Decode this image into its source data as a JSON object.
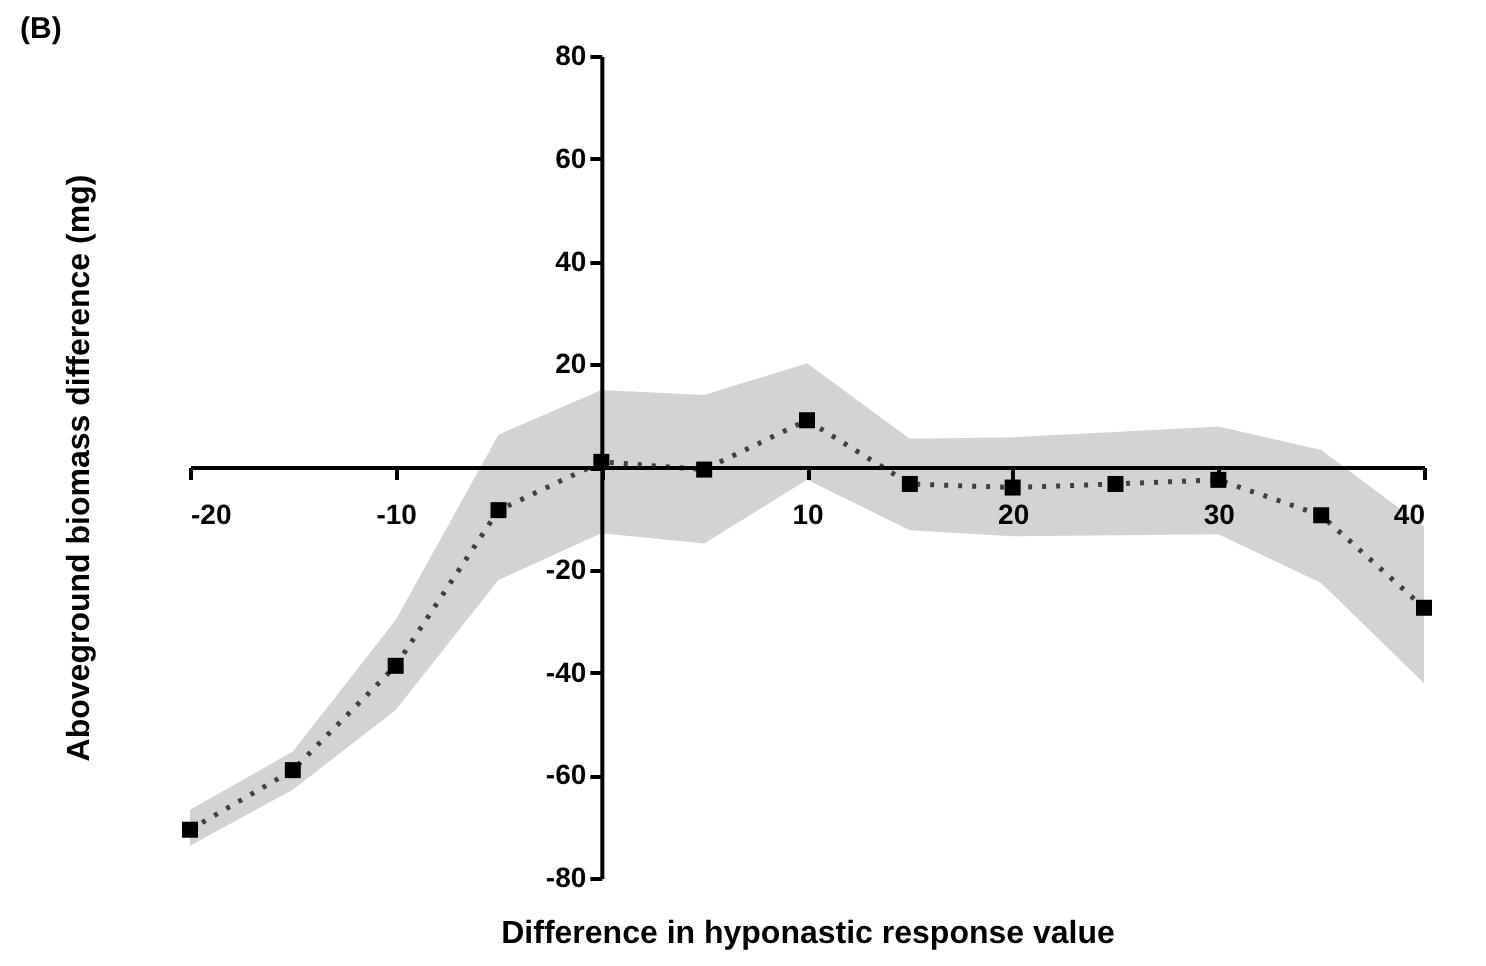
{
  "chart_data": {
    "type": "line",
    "title": "(B)",
    "xlabel": "Difference in hyponastic response value",
    "ylabel": "Aboveground biomass difference (mg)",
    "x": [
      -20,
      -15,
      -10,
      -5,
      0,
      5,
      10,
      15,
      20,
      25,
      30,
      35,
      40
    ],
    "series": [
      {
        "color": "#000000",
        "values": [
          -70.6,
          -59,
          -38.7,
          -8.4,
          1,
          -0.5,
          9.1,
          -3.3,
          -4,
          -3.3,
          -2.5,
          -9.4,
          -27.4
        ],
        "lower": [
          -73.7,
          -62.8,
          -47.3,
          -22,
          -12.9,
          -14.9,
          -2.5,
          -12.3,
          -13.5,
          -13.3,
          -13.1,
          -22.6,
          -42.1
        ],
        "upper": [
          -66.7,
          -55.4,
          -29.8,
          6.3,
          15,
          14,
          20.2,
          5.5,
          5.8,
          6.8,
          7.9,
          3.3,
          -11.6
        ]
      }
    ],
    "xlim": [
      -20,
      40
    ],
    "xticks": [
      -20,
      -10,
      {
        "value": 0,
        "label": null
      },
      10,
      20,
      30,
      40
    ],
    "ylim": [
      -80,
      80
    ],
    "yticks": [
      -80,
      -60,
      -40,
      -20,
      {
        "value": 0,
        "label": null
      },
      20,
      40,
      60,
      80
    ],
    "marker": "square",
    "line_style": "dotted",
    "grid": false
  }
}
